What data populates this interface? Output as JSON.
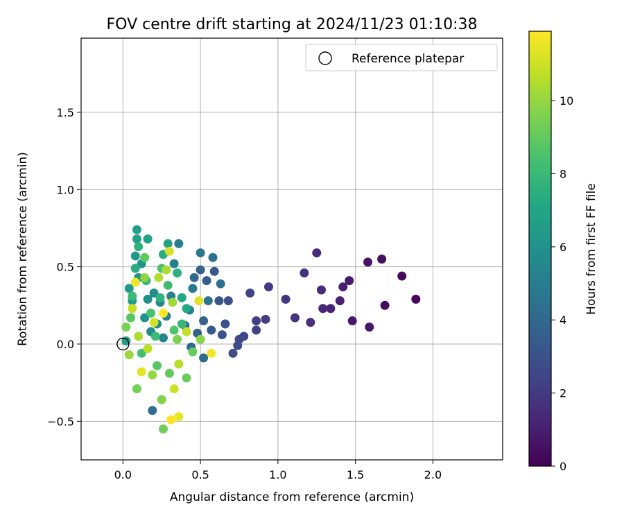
{
  "chart_data": {
    "type": "scatter",
    "title": "FOV centre drift starting at 2024/11/23 01:10:38",
    "xlabel": "Angular distance from reference (arcmin)",
    "ylabel": "Rotation from reference (arcmin)",
    "xlim": [
      -0.27,
      2.45
    ],
    "ylim": [
      -0.75,
      1.98
    ],
    "xticks": [
      0.0,
      0.5,
      1.0,
      1.5,
      2.0
    ],
    "xtick_labels": [
      "0.0",
      "0.5",
      "1.0",
      "1.5",
      "2.0"
    ],
    "yticks": [
      -0.5,
      0.0,
      0.5,
      1.0,
      1.5
    ],
    "ytick_labels": [
      "−0.5",
      "0.0",
      "0.5",
      "1.0",
      "1.5"
    ],
    "grid": true,
    "legend": {
      "placement": "top-right",
      "entries": [
        {
          "label": "Reference platepar",
          "marker": "open-circle"
        }
      ]
    },
    "reference_point": {
      "x": 0.0,
      "y": 0.0
    },
    "colorbar": {
      "label": "Hours from first FF file",
      "range": [
        0,
        11.9
      ],
      "ticks": [
        0,
        2,
        4,
        6,
        8,
        10
      ],
      "tick_labels": [
        "0",
        "2",
        "4",
        "6",
        "8",
        "10"
      ],
      "colormap": "viridis"
    },
    "series": [
      {
        "points": [
          {
            "x": 1.89,
            "y": 0.29,
            "c": 0.2
          },
          {
            "x": 1.8,
            "y": 0.44,
            "c": 0.3
          },
          {
            "x": 1.69,
            "y": 0.25,
            "c": 0.4
          },
          {
            "x": 1.67,
            "y": 0.55,
            "c": 0.5
          },
          {
            "x": 1.58,
            "y": 0.53,
            "c": 0.6
          },
          {
            "x": 1.59,
            "y": 0.11,
            "c": 0.7
          },
          {
            "x": 1.48,
            "y": 0.15,
            "c": 0.8
          },
          {
            "x": 1.46,
            "y": 0.41,
            "c": 0.9
          },
          {
            "x": 1.42,
            "y": 0.37,
            "c": 1.0
          },
          {
            "x": 1.4,
            "y": 0.28,
            "c": 1.1
          },
          {
            "x": 1.34,
            "y": 0.23,
            "c": 1.2
          },
          {
            "x": 1.29,
            "y": 0.23,
            "c": 1.3
          },
          {
            "x": 1.28,
            "y": 0.35,
            "c": 1.4
          },
          {
            "x": 1.25,
            "y": 0.59,
            "c": 1.5
          },
          {
            "x": 1.21,
            "y": 0.14,
            "c": 1.6
          },
          {
            "x": 1.17,
            "y": 0.46,
            "c": 1.7
          },
          {
            "x": 1.11,
            "y": 0.17,
            "c": 1.8
          },
          {
            "x": 1.05,
            "y": 0.29,
            "c": 1.9
          },
          {
            "x": 0.94,
            "y": 0.37,
            "c": 2.0
          },
          {
            "x": 0.92,
            "y": 0.16,
            "c": 2.1
          },
          {
            "x": 0.86,
            "y": 0.15,
            "c": 2.2
          },
          {
            "x": 0.86,
            "y": 0.09,
            "c": 2.3
          },
          {
            "x": 0.82,
            "y": 0.33,
            "c": 2.4
          },
          {
            "x": 0.78,
            "y": 0.05,
            "c": 2.5
          },
          {
            "x": 0.75,
            "y": 0.03,
            "c": 2.6
          },
          {
            "x": 0.74,
            "y": -0.01,
            "c": 2.7
          },
          {
            "x": 0.71,
            "y": -0.06,
            "c": 2.8
          },
          {
            "x": 0.68,
            "y": 0.28,
            "c": 2.9
          },
          {
            "x": 0.66,
            "y": 0.13,
            "c": 3.0
          },
          {
            "x": 0.64,
            "y": 0.06,
            "c": 3.1
          },
          {
            "x": 0.62,
            "y": 0.28,
            "c": 3.2
          },
          {
            "x": 0.59,
            "y": 0.47,
            "c": 3.3
          },
          {
            "x": 0.57,
            "y": 0.09,
            "c": 3.4
          },
          {
            "x": 0.54,
            "y": 0.41,
            "c": 3.5
          },
          {
            "x": 0.52,
            "y": 0.15,
            "c": 3.6
          },
          {
            "x": 0.5,
            "y": 0.48,
            "c": 3.7
          },
          {
            "x": 0.48,
            "y": 0.07,
            "c": 3.8
          },
          {
            "x": 0.46,
            "y": 0.43,
            "c": 3.9
          },
          {
            "x": 0.44,
            "y": -0.02,
            "c": 4.0
          },
          {
            "x": 0.52,
            "y": -0.09,
            "c": 4.1
          },
          {
            "x": 0.4,
            "y": 0.12,
            "c": 4.2
          },
          {
            "x": 0.19,
            "y": -0.43,
            "c": 4.3
          },
          {
            "x": 0.63,
            "y": 0.39,
            "c": 4.4
          },
          {
            "x": 0.58,
            "y": 0.56,
            "c": 4.5
          },
          {
            "x": 0.55,
            "y": 0.28,
            "c": 4.6
          },
          {
            "x": 0.5,
            "y": 0.59,
            "c": 4.7
          },
          {
            "x": 0.45,
            "y": 0.36,
            "c": 4.8
          },
          {
            "x": 0.43,
            "y": 0.22,
            "c": 4.9
          },
          {
            "x": 0.36,
            "y": 0.65,
            "c": 5.0
          },
          {
            "x": 0.33,
            "y": 0.52,
            "c": 5.1
          },
          {
            "x": 0.31,
            "y": 0.31,
            "c": 5.2
          },
          {
            "x": 0.28,
            "y": 0.18,
            "c": 5.3
          },
          {
            "x": 0.26,
            "y": 0.04,
            "c": 5.4
          },
          {
            "x": 0.24,
            "y": 0.27,
            "c": 5.5
          },
          {
            "x": 0.22,
            "y": 0.13,
            "c": 5.6
          },
          {
            "x": 0.2,
            "y": 0.33,
            "c": 5.7
          },
          {
            "x": 0.18,
            "y": 0.08,
            "c": 5.8
          },
          {
            "x": 0.16,
            "y": 0.29,
            "c": 5.9
          },
          {
            "x": 0.14,
            "y": 0.17,
            "c": 6.0
          },
          {
            "x": 0.12,
            "y": 0.52,
            "c": 6.1
          },
          {
            "x": 0.1,
            "y": 0.43,
            "c": 6.2
          },
          {
            "x": 0.08,
            "y": 0.57,
            "c": 6.3
          },
          {
            "x": 0.06,
            "y": 0.28,
            "c": 6.4
          },
          {
            "x": 0.04,
            "y": 0.36,
            "c": 6.5
          },
          {
            "x": 0.02,
            "y": 0.02,
            "c": 6.6
          },
          {
            "x": 0.09,
            "y": 0.74,
            "c": 6.7
          },
          {
            "x": 0.09,
            "y": 0.68,
            "c": 6.8
          },
          {
            "x": 0.16,
            "y": 0.68,
            "c": 6.9
          },
          {
            "x": 0.29,
            "y": 0.65,
            "c": 7.0
          },
          {
            "x": 0.38,
            "y": 0.3,
            "c": 7.1
          },
          {
            "x": 0.41,
            "y": 0.23,
            "c": 7.2
          },
          {
            "x": 0.26,
            "y": 0.58,
            "c": 7.3
          },
          {
            "x": 0.08,
            "y": 0.49,
            "c": 7.4
          },
          {
            "x": 0.35,
            "y": 0.46,
            "c": 7.5
          },
          {
            "x": 0.1,
            "y": 0.63,
            "c": 7.6
          },
          {
            "x": 0.24,
            "y": 0.3,
            "c": 7.7
          },
          {
            "x": 0.15,
            "y": 0.41,
            "c": 7.8
          },
          {
            "x": 0.38,
            "y": 0.13,
            "c": 7.9
          },
          {
            "x": 0.06,
            "y": 0.31,
            "c": 8.0
          },
          {
            "x": 0.21,
            "y": 0.05,
            "c": 8.1
          },
          {
            "x": 0.29,
            "y": 0.38,
            "c": 8.2
          },
          {
            "x": 0.12,
            "y": -0.06,
            "c": 8.3
          },
          {
            "x": 0.18,
            "y": 0.2,
            "c": 8.4
          },
          {
            "x": 0.25,
            "y": 0.49,
            "c": 8.5
          },
          {
            "x": 0.33,
            "y": 0.09,
            "c": 8.6
          },
          {
            "x": 0.05,
            "y": 0.17,
            "c": 8.7
          },
          {
            "x": 0.22,
            "y": -0.14,
            "c": 8.8
          },
          {
            "x": 0.14,
            "y": 0.56,
            "c": 8.9
          },
          {
            "x": 0.3,
            "y": -0.19,
            "c": 9.0
          },
          {
            "x": 0.45,
            "y": -0.05,
            "c": 9.1
          },
          {
            "x": 0.41,
            "y": -0.22,
            "c": 9.2
          },
          {
            "x": 0.26,
            "y": -0.55,
            "c": 9.3
          },
          {
            "x": 0.09,
            "y": -0.29,
            "c": 9.4
          },
          {
            "x": 0.02,
            "y": 0.11,
            "c": 9.5
          },
          {
            "x": 0.35,
            "y": 0.03,
            "c": 9.6
          },
          {
            "x": 0.25,
            "y": -0.36,
            "c": 9.7
          },
          {
            "x": 0.5,
            "y": 0.03,
            "c": 9.8
          },
          {
            "x": 0.14,
            "y": 0.43,
            "c": 9.9
          },
          {
            "x": 0.19,
            "y": -0.2,
            "c": 10.0
          },
          {
            "x": 0.04,
            "y": -0.07,
            "c": 10.1
          },
          {
            "x": 0.32,
            "y": 0.27,
            "c": 10.2
          },
          {
            "x": 0.28,
            "y": 0.48,
            "c": 10.3
          },
          {
            "x": 0.1,
            "y": 0.05,
            "c": 10.4
          },
          {
            "x": 0.23,
            "y": 0.43,
            "c": 10.5
          },
          {
            "x": 0.36,
            "y": -0.13,
            "c": 10.6
          },
          {
            "x": 0.16,
            "y": -0.03,
            "c": 10.7
          },
          {
            "x": 0.41,
            "y": 0.08,
            "c": 10.8
          },
          {
            "x": 0.06,
            "y": 0.23,
            "c": 10.9
          },
          {
            "x": 0.33,
            "y": -0.29,
            "c": 11.0
          },
          {
            "x": 0.2,
            "y": 0.14,
            "c": 11.1
          },
          {
            "x": 0.3,
            "y": 0.6,
            "c": 11.2
          },
          {
            "x": 0.49,
            "y": 0.28,
            "c": 11.3
          },
          {
            "x": 0.12,
            "y": -0.18,
            "c": 11.4
          },
          {
            "x": 0.36,
            "y": -0.47,
            "c": 11.5
          },
          {
            "x": 0.08,
            "y": 0.4,
            "c": 11.6
          },
          {
            "x": 0.57,
            "y": -0.06,
            "c": 11.7
          },
          {
            "x": 0.31,
            "y": -0.49,
            "c": 11.8
          },
          {
            "x": 0.26,
            "y": 0.2,
            "c": 11.9
          }
        ]
      }
    ]
  }
}
